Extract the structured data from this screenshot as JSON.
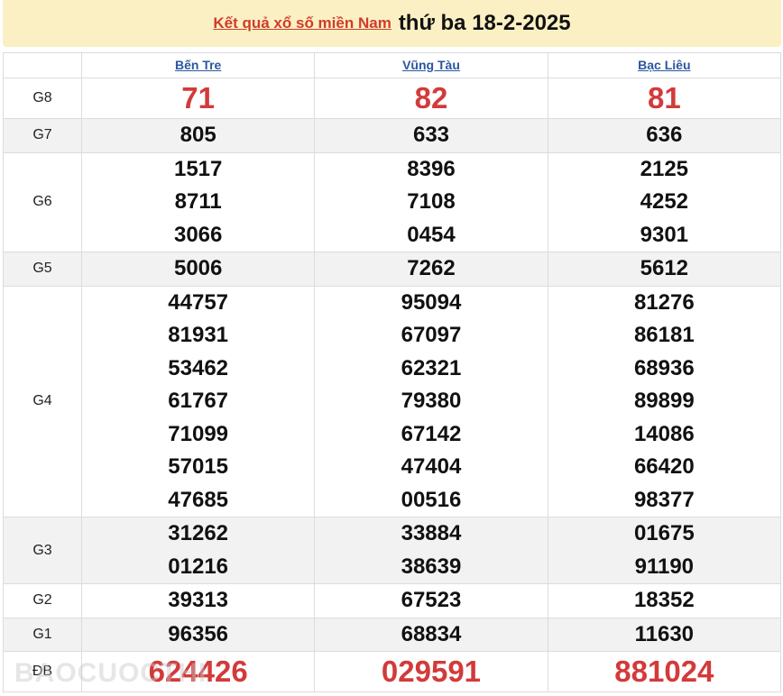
{
  "header": {
    "link_text": "Kết quả xổ số miền Nam",
    "date_text": "thứ ba 18-2-2025"
  },
  "provinces": [
    "Bến Tre",
    "Vũng Tàu",
    "Bạc Liêu"
  ],
  "prizes": [
    {
      "label": "G8",
      "values": [
        [
          "71"
        ],
        [
          "82"
        ],
        [
          "81"
        ]
      ],
      "highlight": true
    },
    {
      "label": "G7",
      "values": [
        [
          "805"
        ],
        [
          "633"
        ],
        [
          "636"
        ]
      ]
    },
    {
      "label": "G6",
      "values": [
        [
          "1517",
          "8711",
          "3066"
        ],
        [
          "8396",
          "7108",
          "0454"
        ],
        [
          "2125",
          "4252",
          "9301"
        ]
      ]
    },
    {
      "label": "G5",
      "values": [
        [
          "5006"
        ],
        [
          "7262"
        ],
        [
          "5612"
        ]
      ]
    },
    {
      "label": "G4",
      "values": [
        [
          "44757",
          "81931",
          "53462",
          "61767",
          "71099",
          "57015",
          "47685"
        ],
        [
          "95094",
          "67097",
          "62321",
          "79380",
          "67142",
          "47404",
          "00516"
        ],
        [
          "81276",
          "86181",
          "68936",
          "89899",
          "14086",
          "66420",
          "98377"
        ]
      ]
    },
    {
      "label": "G3",
      "values": [
        [
          "31262",
          "01216"
        ],
        [
          "33884",
          "38639"
        ],
        [
          "01675",
          "91190"
        ]
      ]
    },
    {
      "label": "G2",
      "values": [
        [
          "39313"
        ],
        [
          "67523"
        ],
        [
          "18352"
        ]
      ]
    },
    {
      "label": "G1",
      "values": [
        [
          "96356"
        ],
        [
          "68834"
        ],
        [
          "11630"
        ]
      ]
    },
    {
      "label": "ĐB",
      "values": [
        [
          "624426"
        ],
        [
          "029591"
        ],
        [
          "881024"
        ]
      ],
      "highlight": true
    }
  ],
  "watermark": "BAOCUOCTHI"
}
